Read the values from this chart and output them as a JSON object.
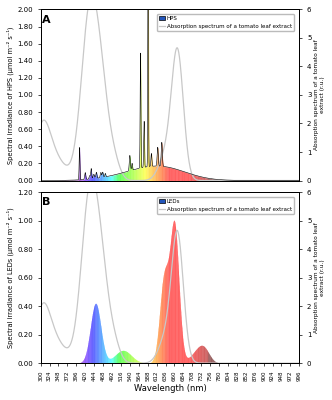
{
  "xlabel": "Wavelength (nm)",
  "ylabel_A": "Spectral irradiance of HPS (μmol m⁻² s⁻¹)",
  "ylabel_B": "Spectral irradiance of LEDs (μmol m⁻² s⁻¹)",
  "ylabel_right": "Absorption spectrum of a tomato leaf\nextract (r.u.)",
  "label_A": "HPS",
  "label_B": "LEDs",
  "label_abs": "Absorption spectrum of a tomato leaf extract",
  "panel_A": "A",
  "panel_B": "B",
  "ylim_A": [
    0,
    2.0
  ],
  "ylim_B": [
    0,
    1.2
  ],
  "ylim_right": [
    0,
    6
  ],
  "yticks_A": [
    0.0,
    0.2,
    0.4,
    0.6,
    0.8,
    1.0,
    1.2,
    1.4,
    1.6,
    1.8,
    2.0
  ],
  "yticks_B": [
    0.0,
    0.2,
    0.4,
    0.6,
    0.8,
    1.0,
    1.2
  ],
  "yticks_right": [
    0,
    1,
    2,
    3,
    4,
    5,
    6
  ],
  "xticks": [
    300,
    324,
    348,
    372,
    396,
    420,
    444,
    468,
    492,
    516,
    540,
    564,
    588,
    612,
    636,
    660,
    684,
    708,
    732,
    756,
    780,
    804,
    828,
    852,
    876,
    900,
    924,
    948,
    972,
    996
  ],
  "xmin": 300,
  "xmax": 996
}
